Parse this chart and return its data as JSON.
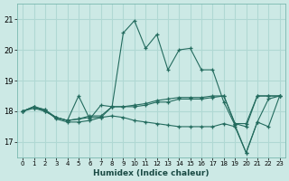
{
  "xlabel": "Humidex (Indice chaleur)",
  "xlim": [
    -0.5,
    23.5
  ],
  "ylim": [
    16.5,
    21.5
  ],
  "yticks": [
    17,
    18,
    19,
    20,
    21
  ],
  "xticks": [
    0,
    1,
    2,
    3,
    4,
    5,
    6,
    7,
    8,
    9,
    10,
    11,
    12,
    13,
    14,
    15,
    16,
    17,
    18,
    19,
    20,
    21,
    22,
    23
  ],
  "bg_color": "#cce9e5",
  "grid_color": "#b0d8d3",
  "line_color": "#236b5e",
  "series": [
    [
      18.0,
      18.15,
      18.05,
      17.75,
      17.65,
      17.65,
      17.7,
      17.8,
      18.15,
      20.55,
      20.95,
      20.05,
      20.5,
      19.35,
      20.0,
      20.05,
      19.35,
      19.35,
      18.3,
      17.55,
      16.65,
      17.65,
      18.4,
      18.5
    ],
    [
      18.0,
      18.15,
      18.0,
      17.8,
      17.7,
      18.5,
      17.75,
      18.2,
      18.15,
      18.15,
      18.15,
      18.2,
      18.3,
      18.3,
      18.4,
      18.4,
      18.4,
      18.45,
      18.5,
      17.6,
      17.5,
      18.5,
      18.5,
      18.5
    ],
    [
      18.0,
      18.1,
      18.0,
      17.8,
      17.7,
      17.75,
      17.8,
      17.8,
      17.85,
      17.8,
      17.7,
      17.65,
      17.6,
      17.55,
      17.5,
      17.5,
      17.5,
      17.5,
      17.6,
      17.5,
      16.65,
      17.65,
      17.5,
      18.5
    ],
    [
      18.0,
      18.15,
      18.05,
      17.8,
      17.7,
      17.75,
      17.85,
      17.85,
      18.15,
      18.15,
      18.2,
      18.25,
      18.35,
      18.4,
      18.45,
      18.45,
      18.45,
      18.5,
      18.5,
      17.6,
      17.6,
      18.5,
      18.5,
      18.5
    ]
  ]
}
